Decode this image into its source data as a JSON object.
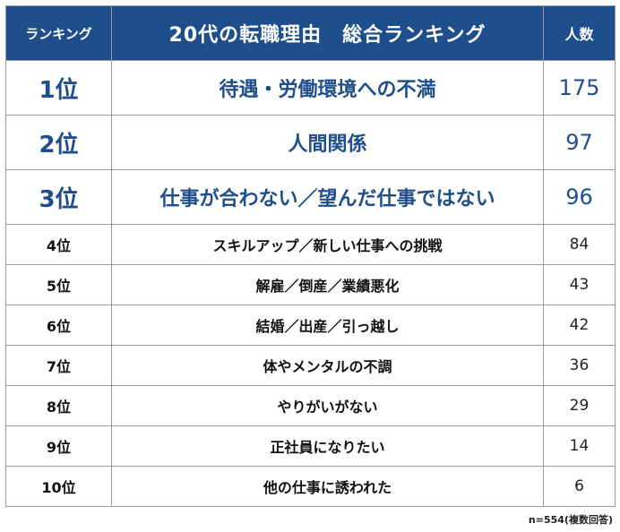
{
  "header": {
    "rank_label": "ランキング",
    "title": "20代の転職理由　総合ランキング",
    "count_label": "人数"
  },
  "rows": [
    {
      "rank": "1位",
      "reason": "待遇・労働環境への不満",
      "count": "175"
    },
    {
      "rank": "2位",
      "reason": "人間関係",
      "count": "97"
    },
    {
      "rank": "3位",
      "reason": "仕事が合わない／望んだ仕事ではない",
      "count": "96"
    },
    {
      "rank": "4位",
      "reason": "スキルアップ／新しい仕事への挑戦",
      "count": "84"
    },
    {
      "rank": "5位",
      "reason": "解雇／倒産／業績悪化",
      "count": "43"
    },
    {
      "rank": "6位",
      "reason": "結婚／出産／引っ越し",
      "count": "42"
    },
    {
      "rank": "7位",
      "reason": "体やメンタルの不調",
      "count": "36"
    },
    {
      "rank": "8位",
      "reason": "やりがいがない",
      "count": "29"
    },
    {
      "rank": "9位",
      "reason": "正社員になりたい",
      "count": "14"
    },
    {
      "rank": "10位",
      "reason": "他の仕事に誘われた",
      "count": "6"
    }
  ],
  "footnote": "n=554(複数回答)",
  "colors": {
    "header_bg": "#1f4e8c",
    "accent_text": "#1f4e8c"
  }
}
